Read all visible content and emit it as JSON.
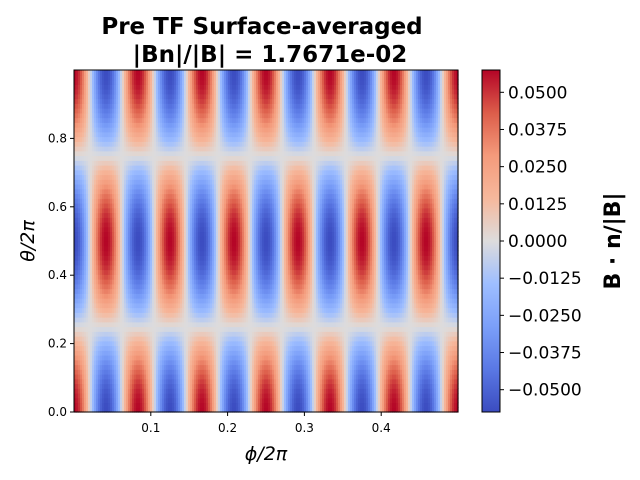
{
  "chart_data": {
    "type": "heatmap",
    "title": "Pre TF Surface-averaged",
    "subtitle": "|Bn|/|B| = 1.7671e-02",
    "xlabel": "ϕ/2π",
    "ylabel": "θ/2π",
    "xlim": [
      0.0,
      0.5
    ],
    "ylim": [
      0.0,
      1.0
    ],
    "xticks": [
      0.1,
      0.2,
      0.3,
      0.4
    ],
    "xtick_labels": [
      "0.1",
      "0.2",
      "0.3",
      "0.4"
    ],
    "yticks": [
      0.0,
      0.2,
      0.4,
      0.6,
      0.8
    ],
    "ytick_labels": [
      "0.0",
      "0.2",
      "0.4",
      "0.6",
      "0.8"
    ],
    "colormap": "coolwarm",
    "colorbar": {
      "label": "B · n/|B|",
      "range": [
        -0.0575,
        0.0575
      ],
      "ticks": [
        0.05,
        0.0375,
        0.025,
        0.0125,
        0.0,
        -0.0125,
        -0.025,
        -0.0375,
        -0.05
      ],
      "tick_labels": [
        "0.0500",
        "0.0375",
        "0.0250",
        "0.0125",
        "0.0000",
        "−0.0125",
        "−0.0250",
        "−0.0375",
        "−0.0500"
      ]
    },
    "field": {
      "expression": "amplitude * cos(2π·θ) * cos(2π·periods·ϕ)",
      "amplitude": 0.0575,
      "periods_in_phi": 12,
      "theta_range": [
        0.0,
        1.0
      ],
      "phi_range": [
        0.0,
        0.5
      ]
    },
    "grid": false
  }
}
